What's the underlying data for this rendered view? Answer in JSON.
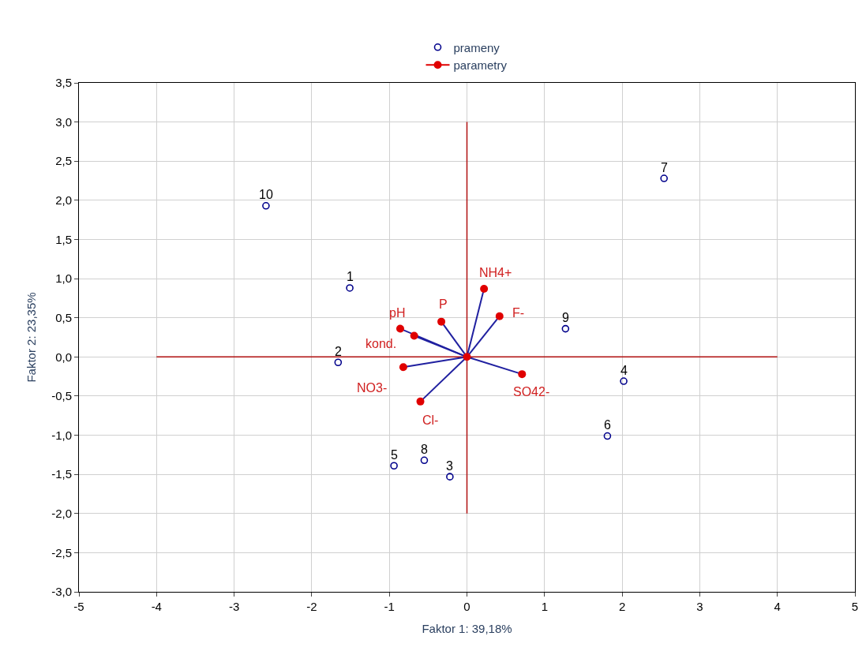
{
  "chart_data": {
    "type": "scatter",
    "xlabel": "Faktor 1: 39,18%",
    "ylabel": "Faktor 2: 23,35%",
    "xlim": [
      -5,
      5
    ],
    "xticks": [
      -5,
      -4,
      -3,
      -2,
      -1,
      0,
      1,
      2,
      3,
      4,
      5
    ],
    "ylim": [
      -3.0,
      3.5
    ],
    "yticks": [
      {
        "value": -3.0,
        "label": "-3,0"
      },
      {
        "value": -2.5,
        "label": "-2,5"
      },
      {
        "value": -2.0,
        "label": "-2,0"
      },
      {
        "value": -1.5,
        "label": "-1,5"
      },
      {
        "value": -1.0,
        "label": "-1,0"
      },
      {
        "value": -0.5,
        "label": "-0,5"
      },
      {
        "value": 0.0,
        "label": "0,0"
      },
      {
        "value": 0.5,
        "label": "0,5"
      },
      {
        "value": 1.0,
        "label": "1,0"
      },
      {
        "value": 1.5,
        "label": "1,5"
      },
      {
        "value": 2.0,
        "label": "2,0"
      },
      {
        "value": 2.5,
        "label": "2,5"
      },
      {
        "value": 3.0,
        "label": "3,0"
      },
      {
        "value": 3.5,
        "label": "3,5"
      }
    ],
    "grid": true,
    "legend": "top",
    "series": [
      {
        "type": "line",
        "color": "#b01010",
        "marker": "none",
        "x": [
          -4,
          4
        ],
        "values": [
          0,
          0
        ]
      },
      {
        "type": "line",
        "color": "#b01010",
        "marker": "none",
        "x": [
          0,
          0
        ],
        "values": [
          -2,
          3
        ]
      },
      {
        "name": "prameny",
        "color": "#00008b",
        "marker": "circle",
        "x": [
          -1.51,
          -1.66,
          -0.22,
          2.02,
          -0.94,
          1.81,
          2.54,
          -0.55,
          1.27,
          -2.59
        ],
        "values": [
          0.88,
          -0.07,
          -1.53,
          -0.31,
          -1.39,
          -1.01,
          2.28,
          -1.32,
          0.36,
          1.93
        ]
      },
      {
        "name": "parametry",
        "type": "line",
        "color": "#e00000",
        "marker": "circle",
        "x": [
          0,
          0.22,
          0.42,
          -0.33,
          -0.86,
          -0.68,
          -0.82,
          -0.6,
          0.71
        ],
        "values": [
          0,
          0.87,
          0.52,
          0.45,
          0.36,
          0.27,
          -0.13,
          -0.57,
          -0.22
        ]
      }
    ],
    "annotations": [
      {
        "text": "1",
        "x": -1.51,
        "y": 0.88
      },
      {
        "text": "2",
        "x": -1.66,
        "y": -0.07
      },
      {
        "text": "3",
        "x": -0.22,
        "y": -1.53
      },
      {
        "text": "4",
        "x": 2.02,
        "y": -0.31
      },
      {
        "text": "5",
        "x": -0.94,
        "y": -1.39
      },
      {
        "text": "6",
        "x": 1.81,
        "y": -1.01
      },
      {
        "text": "7",
        "x": 2.54,
        "y": 2.28
      },
      {
        "text": "8",
        "x": -0.55,
        "y": -1.32
      },
      {
        "text": "9",
        "x": 1.27,
        "y": 0.36
      },
      {
        "text": "10",
        "x": -2.59,
        "y": 1.93
      },
      {
        "text": "NH4+",
        "x": 0.22,
        "y": 0.87
      },
      {
        "text": "F-",
        "x": 0.42,
        "y": 0.52
      },
      {
        "text": "P",
        "x": -0.33,
        "y": 0.45
      },
      {
        "text": "pH",
        "x": -0.86,
        "y": 0.36
      },
      {
        "text": "kond.",
        "x": -0.68,
        "y": 0.27
      },
      {
        "text": "NO3-",
        "x": -0.82,
        "y": -0.13
      },
      {
        "text": "Cl-",
        "x": -0.6,
        "y": -0.57
      },
      {
        "text": "SO42-",
        "x": 0.71,
        "y": -0.22
      }
    ]
  }
}
